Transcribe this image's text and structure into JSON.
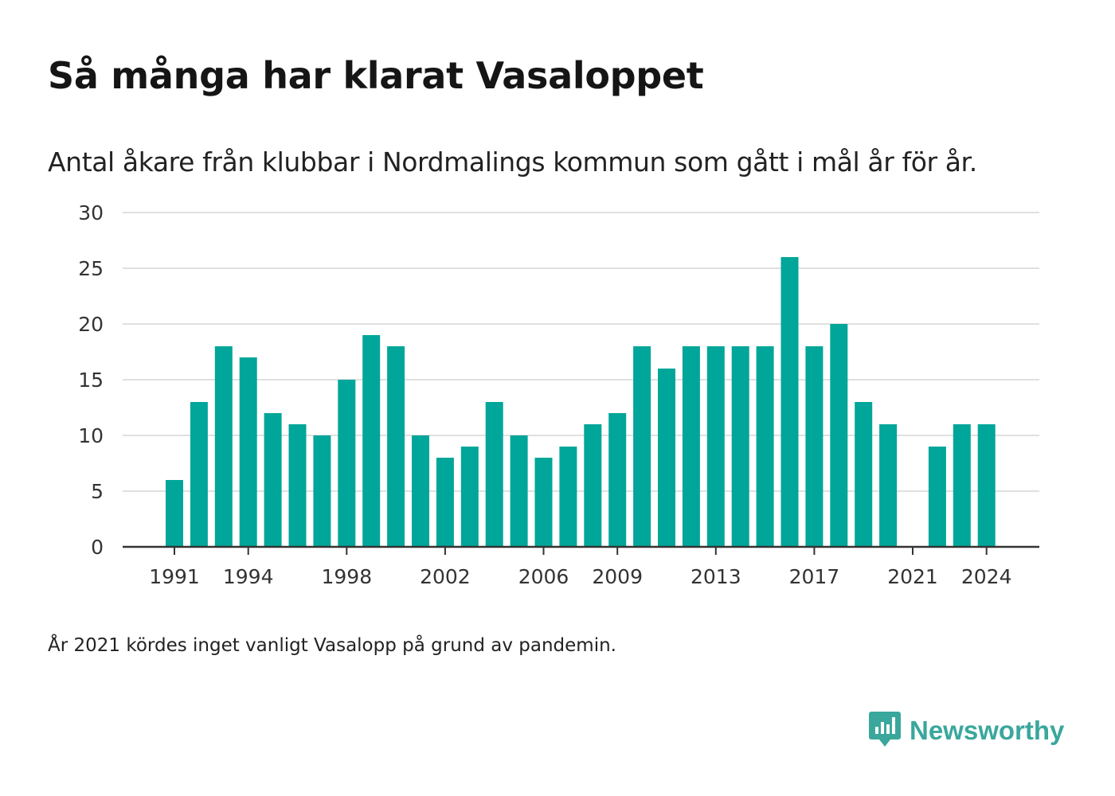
{
  "title": "Så många har klarat Vasaloppet",
  "subtitle": "Antal åkare från klubbar i Nordmalings kommun som gått i mål år för år.",
  "note": "År 2021 kördes inget vanligt Vasalopp på grund av pandemin.",
  "brand": {
    "name": "Newsworthy",
    "icon": "newsworthy-logo-icon",
    "color": "#3aa79c"
  },
  "colors": {
    "bar": "#00a699",
    "grid": "#e0e0e0",
    "axis": "#333333"
  },
  "chart_data": {
    "type": "bar",
    "x": [
      1991,
      1992,
      1993,
      1994,
      1995,
      1996,
      1997,
      1998,
      1999,
      2000,
      2001,
      2002,
      2003,
      2004,
      2005,
      2006,
      2007,
      2008,
      2009,
      2010,
      2011,
      2012,
      2013,
      2014,
      2015,
      2016,
      2017,
      2018,
      2019,
      2020,
      2021,
      2022,
      2023,
      2024
    ],
    "values": [
      6,
      13,
      18,
      17,
      12,
      11,
      10,
      15,
      19,
      18,
      10,
      8,
      9,
      13,
      10,
      8,
      9,
      11,
      12,
      18,
      16,
      18,
      18,
      18,
      18,
      26,
      18,
      20,
      13,
      11,
      null,
      9,
      11,
      11
    ],
    "x_ticks": [
      "1991",
      "1994",
      "1998",
      "2002",
      "2006",
      "2009",
      "2013",
      "2017",
      "2021",
      "2024"
    ],
    "y_ticks": [
      "0",
      "5",
      "10",
      "15",
      "20",
      "25",
      "30"
    ],
    "ylim": [
      0,
      30
    ],
    "xlabel": "",
    "ylabel": "",
    "grid": true
  }
}
